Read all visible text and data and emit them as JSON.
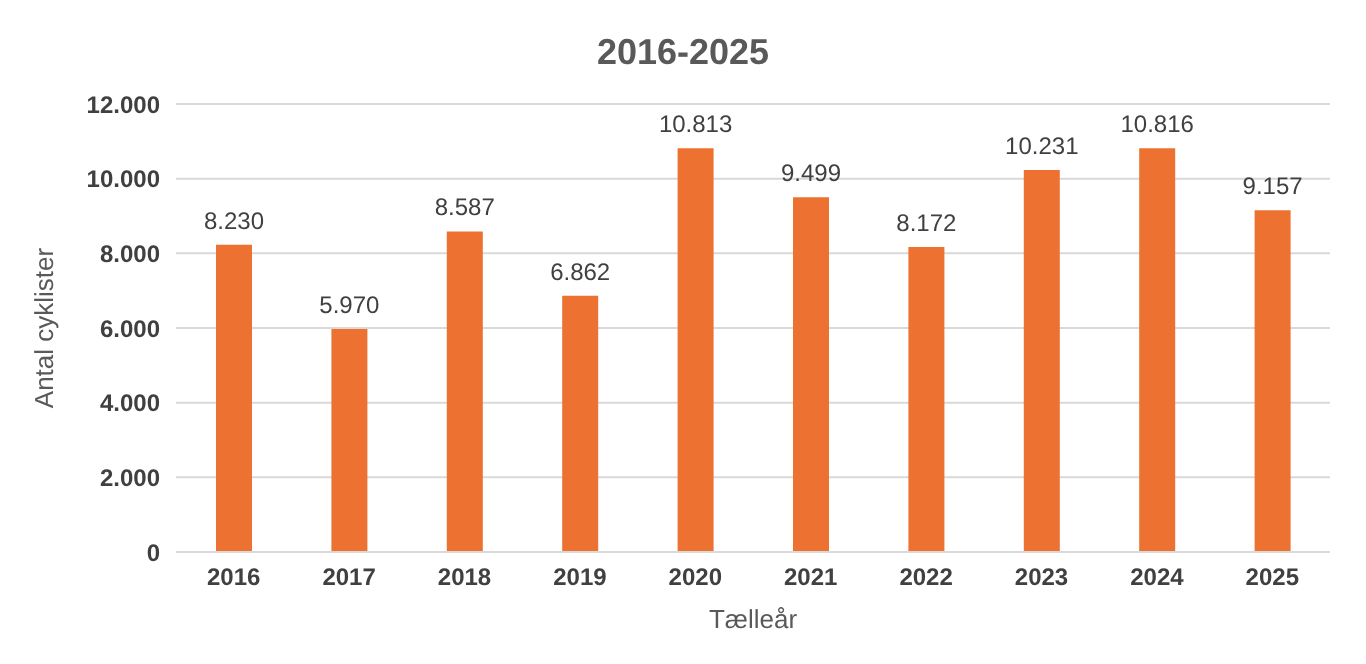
{
  "chart_data": {
    "type": "bar",
    "title": "2016-2025",
    "xlabel": "Tælleår",
    "ylabel": "Antal cyklister",
    "categories": [
      "2016",
      "2017",
      "2018",
      "2019",
      "2020",
      "2021",
      "2022",
      "2023",
      "2024",
      "2025"
    ],
    "values": [
      8230,
      5970,
      8587,
      6862,
      10813,
      9499,
      8172,
      10231,
      10816,
      9157
    ],
    "value_labels": [
      "8.230",
      "5.970",
      "8.587",
      "6.862",
      "10.813",
      "9.499",
      "8.172",
      "10.231",
      "10.816",
      "9.157"
    ],
    "color": "#ed7232",
    "ylim": [
      0,
      12000
    ],
    "yticks": [
      {
        "value": 0,
        "label": "0"
      },
      {
        "value": 2000,
        "label": "2.000"
      },
      {
        "value": 4000,
        "label": "4.000"
      },
      {
        "value": 6000,
        "label": "6.000"
      },
      {
        "value": 8000,
        "label": "8.000"
      },
      {
        "value": 10000,
        "label": "10.000"
      },
      {
        "value": 12000,
        "label": "12.000"
      }
    ],
    "grid": "y",
    "legend": false
  }
}
